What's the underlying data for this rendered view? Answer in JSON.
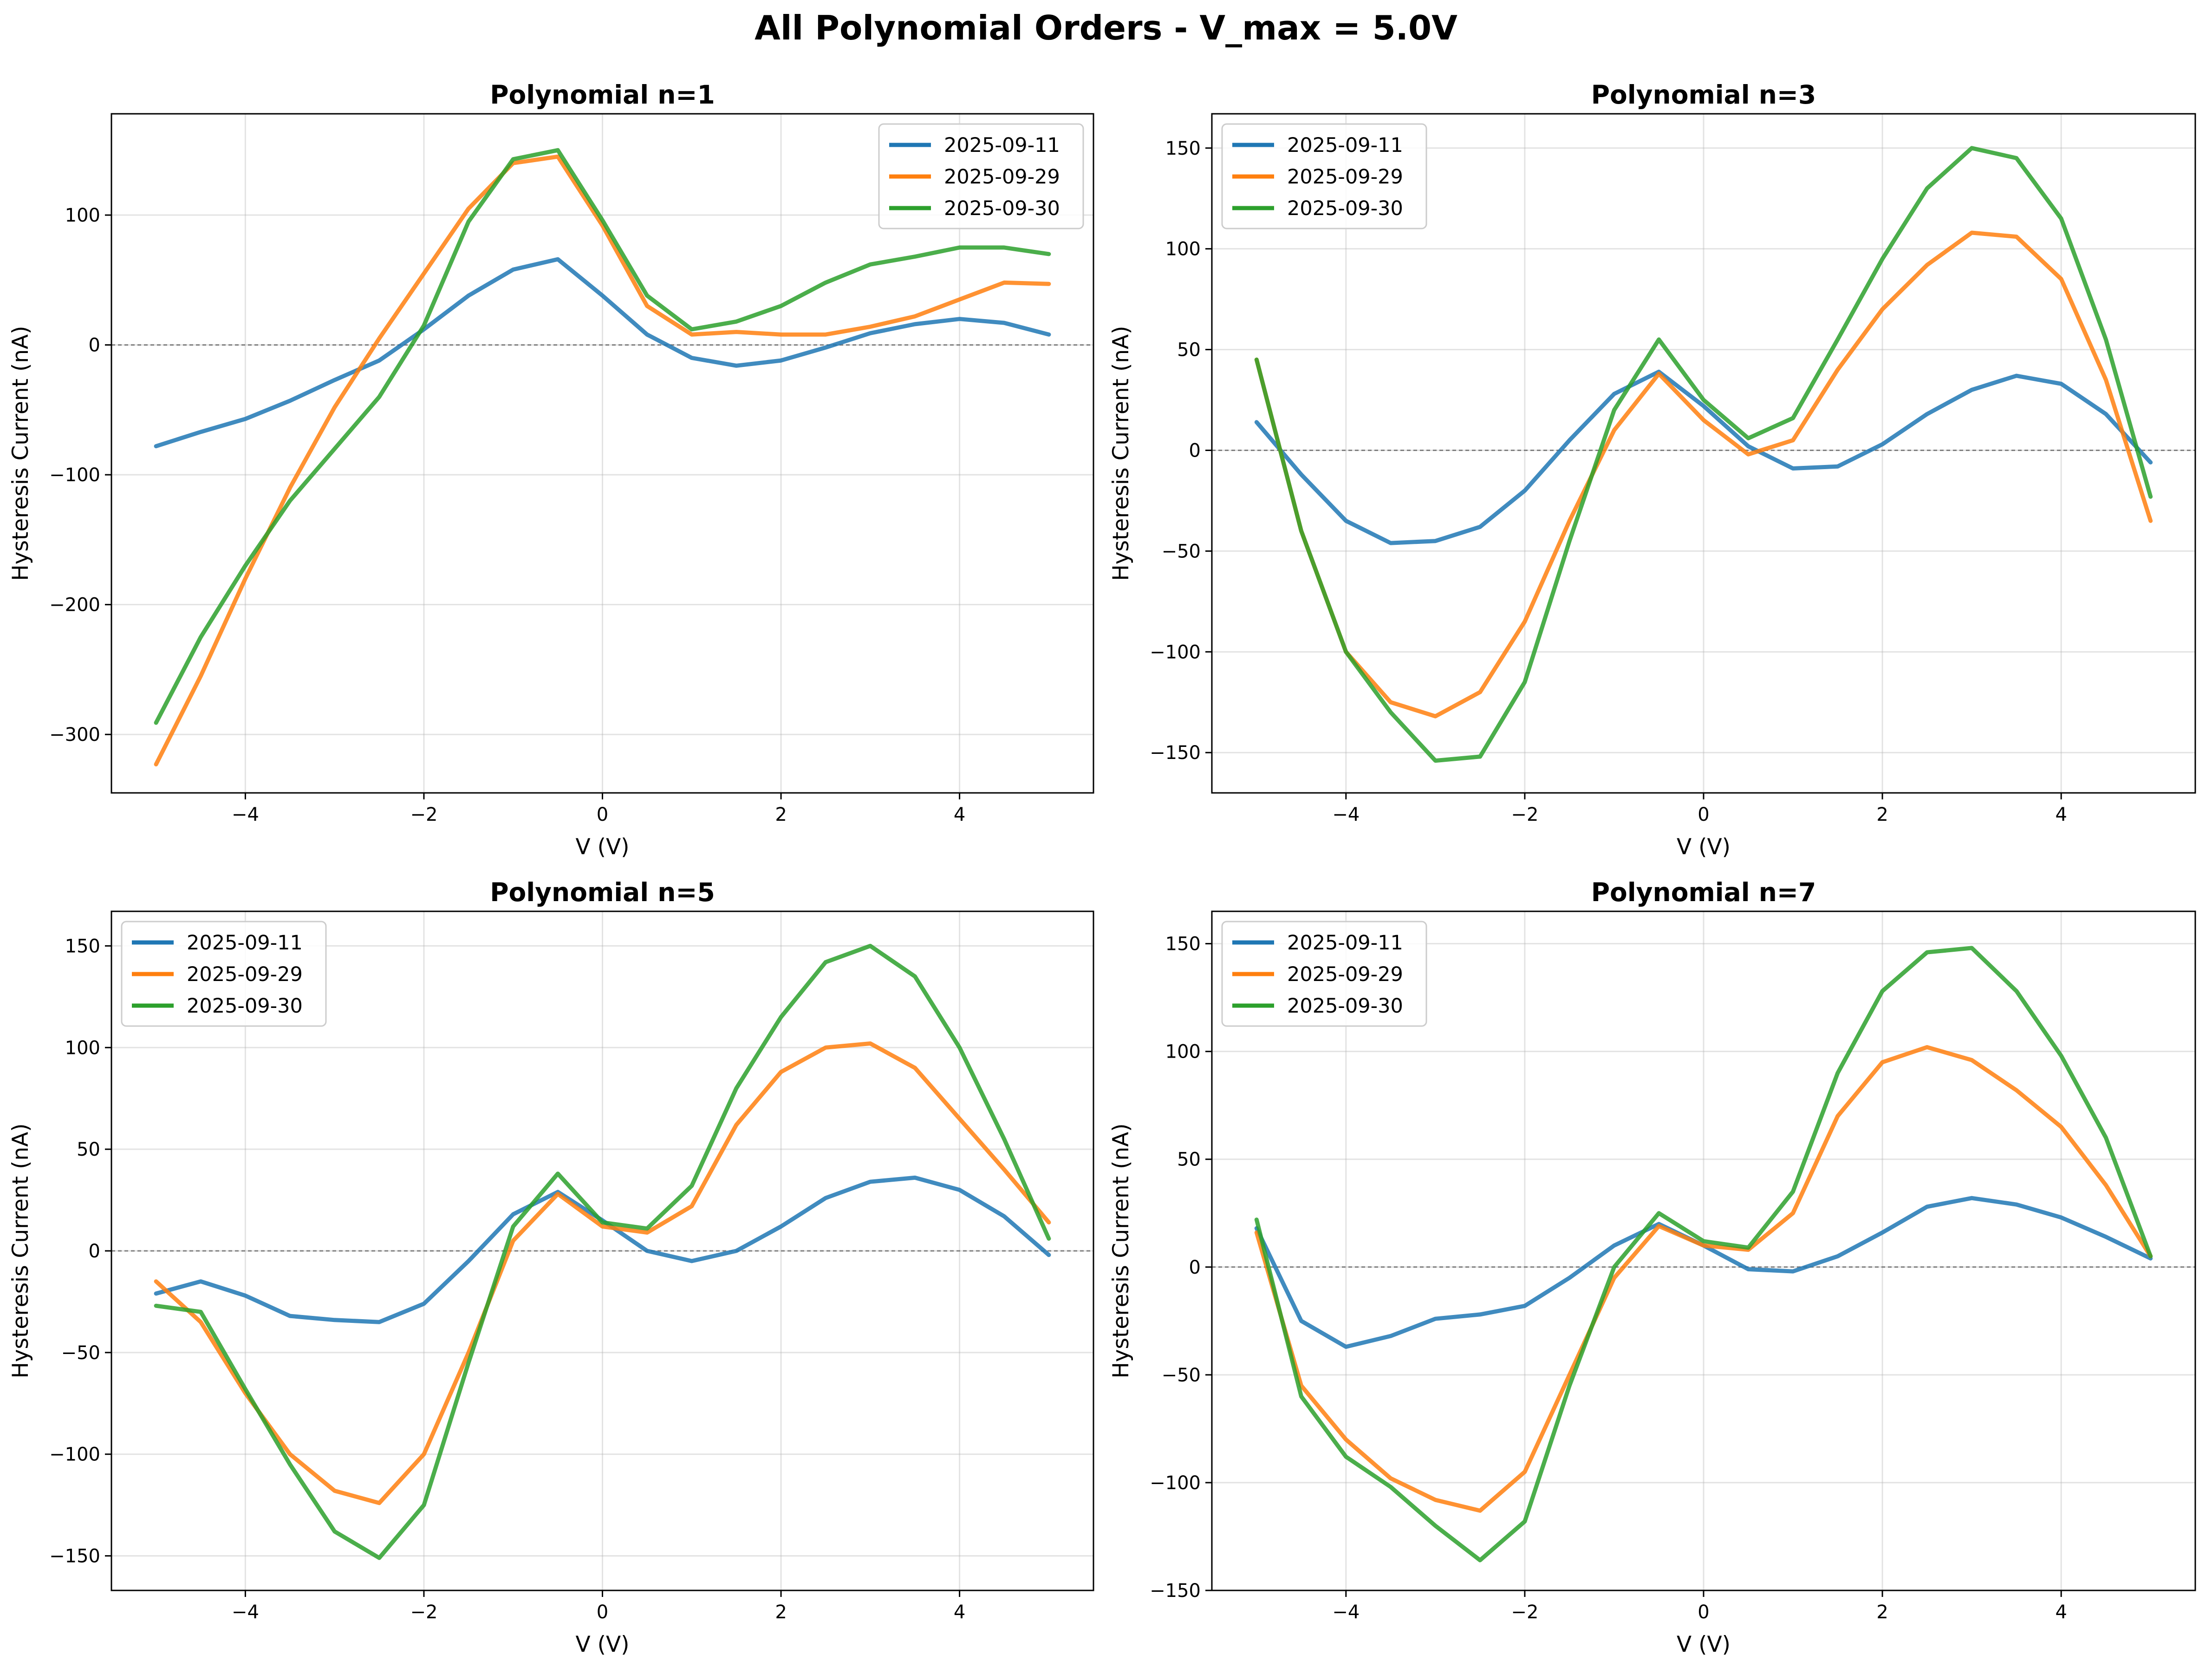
{
  "figure": {
    "title": "All Polynomial Orders - V_max = 5.0V"
  },
  "colors": {
    "2025-09-11": "#1f77b4",
    "2025-09-29": "#ff7f0e",
    "2025-09-30": "#2ca02c",
    "grid": "#b0b0b0",
    "zero_line": "#808080"
  },
  "chart_data": [
    {
      "type": "line",
      "title": "Polynomial n=1",
      "xlabel": "V (V)",
      "ylabel": "Hysteresis Current (nA)",
      "xlim": [
        -5.5,
        5.5
      ],
      "ylim": [
        -345,
        178
      ],
      "xticks": [
        -4,
        -2,
        0,
        2,
        4
      ],
      "yticks": [
        -300,
        -200,
        -100,
        0,
        100
      ],
      "grid": true,
      "zero_line": true,
      "legend": "upper right",
      "series": [
        {
          "name": "2025-09-11",
          "x": [
            -5,
            -4.5,
            -4,
            -3.5,
            -3,
            -2.5,
            -2,
            -1.5,
            -1,
            -0.5,
            0,
            0.5,
            1,
            1.5,
            2,
            2.5,
            3,
            3.5,
            4,
            4.5,
            5
          ],
          "y": [
            -78,
            -67,
            -57,
            -43,
            -27,
            -12,
            12,
            38,
            58,
            66,
            38,
            8,
            -10,
            -16,
            -12,
            -2,
            9,
            16,
            20,
            17,
            8
          ]
        },
        {
          "name": "2025-09-29",
          "x": [
            -5,
            -4.5,
            -4,
            -3.5,
            -3,
            -2.5,
            -2,
            -1.5,
            -1,
            -0.5,
            0,
            0.5,
            1,
            1.5,
            2,
            2.5,
            3,
            3.5,
            4,
            4.5,
            5
          ],
          "y": [
            -323,
            -255,
            -180,
            -110,
            -48,
            5,
            55,
            105,
            140,
            145,
            92,
            30,
            8,
            10,
            8,
            8,
            14,
            22,
            35,
            48,
            47
          ]
        },
        {
          "name": "2025-09-30",
          "x": [
            -5,
            -4.5,
            -4,
            -3.5,
            -3,
            -2.5,
            -2,
            -1.5,
            -1,
            -0.5,
            0,
            0.5,
            1,
            1.5,
            2,
            2.5,
            3,
            3.5,
            4,
            4.5,
            5
          ],
          "y": [
            -291,
            -225,
            -170,
            -120,
            -80,
            -40,
            15,
            95,
            143,
            150,
            96,
            38,
            12,
            18,
            30,
            48,
            62,
            68,
            75,
            75,
            70
          ]
        }
      ]
    },
    {
      "type": "line",
      "title": "Polynomial n=3",
      "xlabel": "V (V)",
      "ylabel": "Hysteresis Current (nA)",
      "xlim": [
        -5.5,
        5.5
      ],
      "ylim": [
        -170,
        167
      ],
      "xticks": [
        -4,
        -2,
        0,
        2,
        4
      ],
      "yticks": [
        -150,
        -100,
        -50,
        0,
        50,
        100,
        150
      ],
      "grid": true,
      "zero_line": true,
      "legend": "upper left",
      "series": [
        {
          "name": "2025-09-11",
          "x": [
            -5,
            -4.5,
            -4,
            -3.5,
            -3,
            -2.5,
            -2,
            -1.5,
            -1,
            -0.5,
            0,
            0.5,
            1,
            1.5,
            2,
            2.5,
            3,
            3.5,
            4,
            4.5,
            5
          ],
          "y": [
            14,
            -12,
            -35,
            -46,
            -45,
            -38,
            -20,
            5,
            28,
            39,
            22,
            2,
            -9,
            -8,
            3,
            18,
            30,
            37,
            33,
            18,
            -6
          ]
        },
        {
          "name": "2025-09-29",
          "x": [
            -5,
            -4.5,
            -4,
            -3.5,
            -3,
            -2.5,
            -2,
            -1.5,
            -1,
            -0.5,
            0,
            0.5,
            1,
            1.5,
            2,
            2.5,
            3,
            3.5,
            4,
            4.5,
            5
          ],
          "y": [
            45,
            -40,
            -100,
            -125,
            -132,
            -120,
            -85,
            -35,
            10,
            38,
            15,
            -2,
            5,
            40,
            70,
            92,
            108,
            106,
            85,
            35,
            -35
          ]
        },
        {
          "name": "2025-09-30",
          "x": [
            -5,
            -4.5,
            -4,
            -3.5,
            -3,
            -2.5,
            -2,
            -1.5,
            -1,
            -0.5,
            0,
            0.5,
            1,
            1.5,
            2,
            2.5,
            3,
            3.5,
            4,
            4.5,
            5
          ],
          "y": [
            45,
            -40,
            -100,
            -130,
            -154,
            -152,
            -115,
            -45,
            20,
            55,
            25,
            6,
            16,
            55,
            95,
            130,
            150,
            145,
            115,
            55,
            -23
          ]
        }
      ]
    },
    {
      "type": "line",
      "title": "Polynomial n=5",
      "xlabel": "V (V)",
      "ylabel": "Hysteresis Current (nA)",
      "xlim": [
        -5.5,
        5.5
      ],
      "ylim": [
        -167,
        167
      ],
      "xticks": [
        -4,
        -2,
        0,
        2,
        4
      ],
      "yticks": [
        -150,
        -100,
        -50,
        0,
        50,
        100,
        150
      ],
      "grid": true,
      "zero_line": true,
      "legend": "upper left",
      "series": [
        {
          "name": "2025-09-11",
          "x": [
            -5,
            -4.5,
            -4,
            -3.5,
            -3,
            -2.5,
            -2,
            -1.5,
            -1,
            -0.5,
            0,
            0.5,
            1,
            1.5,
            2,
            2.5,
            3,
            3.5,
            4,
            4.5,
            5
          ],
          "y": [
            -21,
            -15,
            -22,
            -32,
            -34,
            -35,
            -26,
            -5,
            18,
            29,
            15,
            0,
            -5,
            0,
            12,
            26,
            34,
            36,
            30,
            17,
            -2
          ]
        },
        {
          "name": "2025-09-29",
          "x": [
            -5,
            -4.5,
            -4,
            -3.5,
            -3,
            -2.5,
            -2,
            -1.5,
            -1,
            -0.5,
            0,
            0.5,
            1,
            1.5,
            2,
            2.5,
            3,
            3.5,
            4,
            4.5,
            5
          ],
          "y": [
            -15,
            -35,
            -70,
            -100,
            -118,
            -124,
            -100,
            -50,
            5,
            28,
            12,
            9,
            22,
            62,
            88,
            100,
            102,
            90,
            65,
            40,
            14
          ]
        },
        {
          "name": "2025-09-30",
          "x": [
            -5,
            -4.5,
            -4,
            -3.5,
            -3,
            -2.5,
            -2,
            -1.5,
            -1,
            -0.5,
            0,
            0.5,
            1,
            1.5,
            2,
            2.5,
            3,
            3.5,
            4,
            4.5,
            5
          ],
          "y": [
            -27,
            -30,
            -68,
            -105,
            -138,
            -151,
            -125,
            -55,
            12,
            38,
            14,
            11,
            32,
            80,
            115,
            142,
            150,
            135,
            100,
            55,
            6
          ]
        }
      ]
    },
    {
      "type": "line",
      "title": "Polynomial n=7",
      "xlabel": "V (V)",
      "ylabel": "Hysteresis Current (nA)",
      "xlim": [
        -5.5,
        5.5
      ],
      "ylim": [
        -150,
        165
      ],
      "xticks": [
        -4,
        -2,
        0,
        2,
        4
      ],
      "yticks": [
        -150,
        -100,
        -50,
        0,
        50,
        100,
        150
      ],
      "grid": true,
      "zero_line": true,
      "legend": "upper left",
      "series": [
        {
          "name": "2025-09-11",
          "x": [
            -5,
            -4.5,
            -4,
            -3.5,
            -3,
            -2.5,
            -2,
            -1.5,
            -1,
            -0.5,
            0,
            0.5,
            1,
            1.5,
            2,
            2.5,
            3,
            3.5,
            4,
            4.5,
            5
          ],
          "y": [
            18,
            -25,
            -37,
            -32,
            -24,
            -22,
            -18,
            -5,
            10,
            20,
            10,
            -1,
            -2,
            5,
            16,
            28,
            32,
            29,
            23,
            14,
            4
          ]
        },
        {
          "name": "2025-09-29",
          "x": [
            -5,
            -4.5,
            -4,
            -3.5,
            -3,
            -2.5,
            -2,
            -1.5,
            -1,
            -0.5,
            0,
            0.5,
            1,
            1.5,
            2,
            2.5,
            3,
            3.5,
            4,
            4.5,
            5
          ],
          "y": [
            16,
            -55,
            -80,
            -98,
            -108,
            -113,
            -95,
            -50,
            -5,
            19,
            10,
            8,
            25,
            70,
            95,
            102,
            96,
            82,
            65,
            38,
            5
          ]
        },
        {
          "name": "2025-09-30",
          "x": [
            -5,
            -4.5,
            -4,
            -3.5,
            -3,
            -2.5,
            -2,
            -1.5,
            -1,
            -0.5,
            0,
            0.5,
            1,
            1.5,
            2,
            2.5,
            3,
            3.5,
            4,
            4.5,
            5
          ],
          "y": [
            22,
            -60,
            -88,
            -102,
            -120,
            -136,
            -118,
            -55,
            0,
            25,
            12,
            9,
            35,
            90,
            128,
            146,
            148,
            128,
            98,
            60,
            5
          ]
        }
      ]
    }
  ]
}
